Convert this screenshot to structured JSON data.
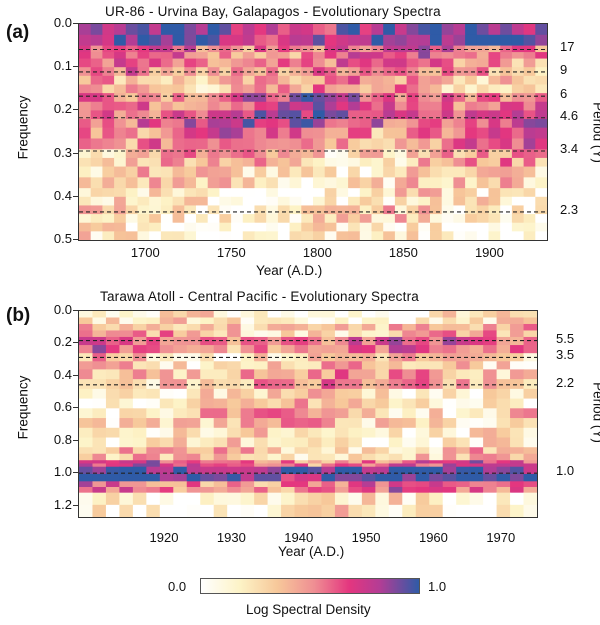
{
  "chart_data": [
    {
      "type": "heatmap",
      "panel_label": "(a)",
      "title": "UR-86  -  Urvina Bay, Galapagos  -  Evolutionary Spectra",
      "xlabel": "Year  (A.D.)",
      "ylabel": "Frequency",
      "y2label": "Period  (Y)",
      "xlim": [
        1660,
        1932
      ],
      "ylim": [
        0.0,
        0.5
      ],
      "x_ticks": [
        "1700",
        "1750",
        "1800",
        "1850",
        "1900"
      ],
      "y_ticks": [
        "0.0",
        "0.1",
        "0.2",
        "0.3",
        "0.4",
        "0.5"
      ],
      "periods": [
        {
          "label": "17",
          "freq": 0.059
        },
        {
          "label": "9",
          "freq": 0.111
        },
        {
          "label": "6",
          "freq": 0.167
        },
        {
          "label": "4.6",
          "freq": 0.217
        },
        {
          "label": "3.4",
          "freq": 0.294
        },
        {
          "label": "2.3",
          "freq": 0.435
        }
      ],
      "bands": [
        {
          "f0": 0.0,
          "f1": 0.05,
          "level": 0.85
        },
        {
          "f0": 0.05,
          "f1": 0.08,
          "level": 0.6
        },
        {
          "f0": 0.08,
          "f1": 0.12,
          "level": 0.5
        },
        {
          "f0": 0.12,
          "f1": 0.16,
          "level": 0.4
        },
        {
          "f0": 0.16,
          "f1": 0.2,
          "level": 0.65
        },
        {
          "f0": 0.2,
          "f1": 0.24,
          "level": 0.72
        },
        {
          "f0": 0.24,
          "f1": 0.29,
          "level": 0.55
        },
        {
          "f0": 0.29,
          "f1": 0.33,
          "level": 0.35
        },
        {
          "f0": 0.33,
          "f1": 0.38,
          "level": 0.25
        },
        {
          "f0": 0.38,
          "f1": 0.42,
          "level": 0.15
        },
        {
          "f0": 0.42,
          "f1": 0.46,
          "level": 0.2
        },
        {
          "f0": 0.46,
          "f1": 0.5,
          "level": 0.12
        }
      ]
    },
    {
      "type": "heatmap",
      "panel_label": "(b)",
      "title": "Tarawa Atoll  -  Central Pacific  -  Evolutionary Spectra",
      "xlabel": "Year  (A.D.)",
      "ylabel": "Frequency",
      "y2label": "Period  (Y)",
      "xlim": [
        1907,
        1975
      ],
      "ylim": [
        0.0,
        1.27
      ],
      "x_ticks": [
        "1920",
        "1930",
        "1940",
        "1950",
        "1960",
        "1970"
      ],
      "y_ticks": [
        "0.0",
        "0.2",
        "0.4",
        "0.6",
        "0.8",
        "1.0",
        "1.2"
      ],
      "periods": [
        {
          "label": "5.5",
          "freq": 0.182
        },
        {
          "label": "3.5",
          "freq": 0.286
        },
        {
          "label": "2.2",
          "freq": 0.455
        },
        {
          "label": "1.0",
          "freq": 1.0
        }
      ],
      "bands": [
        {
          "f0": 0.0,
          "f1": 0.08,
          "level": 0.12
        },
        {
          "f0": 0.08,
          "f1": 0.16,
          "level": 0.35
        },
        {
          "f0": 0.16,
          "f1": 0.26,
          "level": 0.55
        },
        {
          "f0": 0.26,
          "f1": 0.36,
          "level": 0.3
        },
        {
          "f0": 0.36,
          "f1": 0.48,
          "level": 0.4
        },
        {
          "f0": 0.48,
          "f1": 0.6,
          "level": 0.25
        },
        {
          "f0": 0.6,
          "f1": 0.72,
          "level": 0.3
        },
        {
          "f0": 0.72,
          "f1": 0.84,
          "level": 0.18
        },
        {
          "f0": 0.84,
          "f1": 0.92,
          "level": 0.3
        },
        {
          "f0": 0.92,
          "f1": 0.96,
          "level": 0.6
        },
        {
          "f0": 0.96,
          "f1": 1.05,
          "level": 0.95
        },
        {
          "f0": 1.05,
          "f1": 1.12,
          "level": 0.55
        },
        {
          "f0": 1.12,
          "f1": 1.27,
          "level": 0.15
        }
      ]
    }
  ],
  "colorbar": {
    "label": "Log Spectral Density",
    "min_label": "0.0",
    "max_label": "1.0",
    "colors": [
      "#ffffff",
      "#fdf3c6",
      "#f7c89a",
      "#ef8e93",
      "#e4367f",
      "#b33d95",
      "#2f5ba7"
    ]
  }
}
